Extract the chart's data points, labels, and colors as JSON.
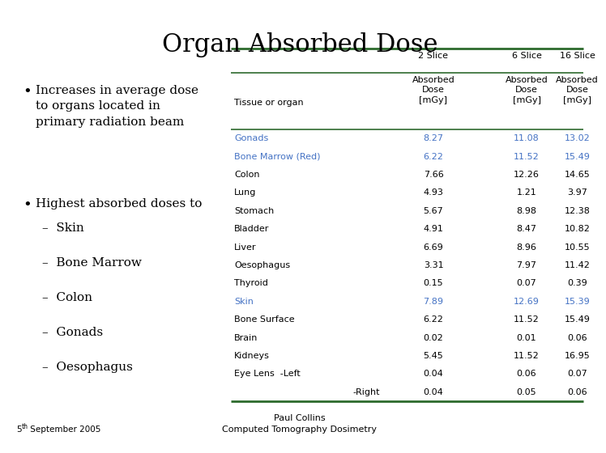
{
  "title": "Organ Absorbed Dose",
  "background_color": "#ffffff",
  "bullet1_text": "Increases in average dose\nto organs located in\nprimary radiation beam",
  "bullet2_header": "Highest absorbed doses to",
  "sub_items": [
    "Skin",
    "Bone Marrow",
    "Colon",
    "Gonads",
    "Oesophagus"
  ],
  "table_headers_row1": [
    "",
    "2 Slice",
    "6 Slice",
    "16 Slice"
  ],
  "table_headers_row2": [
    "Tissue or organ",
    "Absorbed\nDose\n[mGy]",
    "Absorbed\nDose\n[mGy]",
    "Absorbed\nDose\n[mGy]"
  ],
  "table_rows": [
    [
      "Gonads",
      "8.27",
      "11.08",
      "13.02",
      true
    ],
    [
      "Bone Marrow (Red)",
      "6.22",
      "11.52",
      "15.49",
      true
    ],
    [
      "Colon",
      "7.66",
      "12.26",
      "14.65",
      false
    ],
    [
      "Lung",
      "4.93",
      "1.21",
      "3.97",
      false
    ],
    [
      "Stomach",
      "5.67",
      "8.98",
      "12.38",
      false
    ],
    [
      "Bladder",
      "4.91",
      "8.47",
      "10.82",
      false
    ],
    [
      "Liver",
      "6.69",
      "8.96",
      "10.55",
      false
    ],
    [
      "Oesophagus",
      "3.31",
      "7.97",
      "11.42",
      false
    ],
    [
      "Thyroid",
      "0.15",
      "0.07",
      "0.39",
      false
    ],
    [
      "Skin",
      "7.89",
      "12.69",
      "15.39",
      true
    ],
    [
      "Bone Surface",
      "6.22",
      "11.52",
      "15.49",
      false
    ],
    [
      "Brain",
      "0.02",
      "0.01",
      "0.06",
      false
    ],
    [
      "Kidneys",
      "5.45",
      "11.52",
      "16.95",
      false
    ],
    [
      "Eye Lens  -Left",
      "0.04",
      "0.06",
      "0.07",
      false
    ],
    [
      "-Right",
      "0.04",
      "0.05",
      "0.06",
      false
    ]
  ],
  "highlight_color": "#4472c4",
  "normal_color": "#000000",
  "header_color": "#000000",
  "table_line_color": "#2d6a2d",
  "footer_left_num": "5",
  "footer_left_sup": "th",
  "footer_left_rest": " September 2005",
  "footer_center_line1": "Paul Collins",
  "footer_center_line2": "Computed Tomography Dosimetry"
}
